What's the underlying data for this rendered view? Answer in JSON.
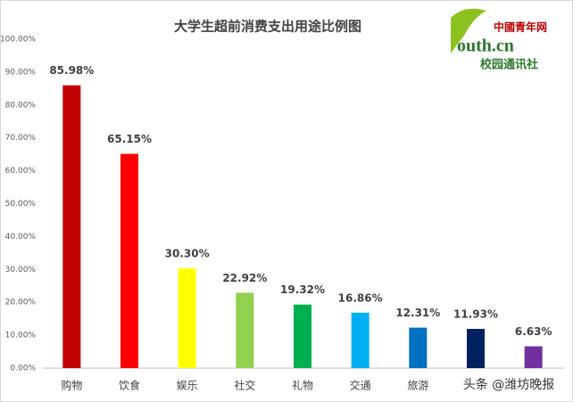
{
  "chart_data": {
    "type": "bar",
    "title": "大学生超前消费支出用途比例图",
    "categories": [
      "购物",
      "饮食",
      "娱乐",
      "社交",
      "礼物",
      "交通",
      "旅游",
      null,
      null
    ],
    "values": [
      85.98,
      65.15,
      30.3,
      22.92,
      19.32,
      16.86,
      12.31,
      11.93,
      6.63
    ],
    "value_labels": [
      "85.98%",
      "65.15%",
      "30.30%",
      "22.92%",
      "19.32%",
      "16.86%",
      "12.31%",
      "11.93%",
      "6.63%"
    ],
    "colors": [
      "#c00000",
      "#ff0000",
      "#ffff00",
      "#92d050",
      "#00b050",
      "#00b0f0",
      "#0070c0",
      "#002060",
      "#7030a0"
    ],
    "ylim": [
      0,
      100
    ],
    "yticks": [
      {
        "value": 0,
        "label": "0.00%"
      },
      {
        "value": 10,
        "label": "10.00%"
      },
      {
        "value": 20,
        "label": "20.00%"
      },
      {
        "value": 30,
        "label": "30.00%"
      },
      {
        "value": 40,
        "label": "40.00%"
      },
      {
        "value": 50,
        "label": "50.00%"
      },
      {
        "value": 60,
        "label": "60.00%"
      },
      {
        "value": 70,
        "label": "70.00%"
      },
      {
        "value": 80,
        "label": "80.00%"
      },
      {
        "value": 90,
        "label": "90.00%"
      },
      {
        "value": 100,
        "label": "100.00%"
      }
    ],
    "grid": false
  },
  "logo": {
    "brand": "中國青年网",
    "site": "outh.cn",
    "subtitle": "校园通讯社"
  },
  "watermark": "头条 @潍坊晚报"
}
